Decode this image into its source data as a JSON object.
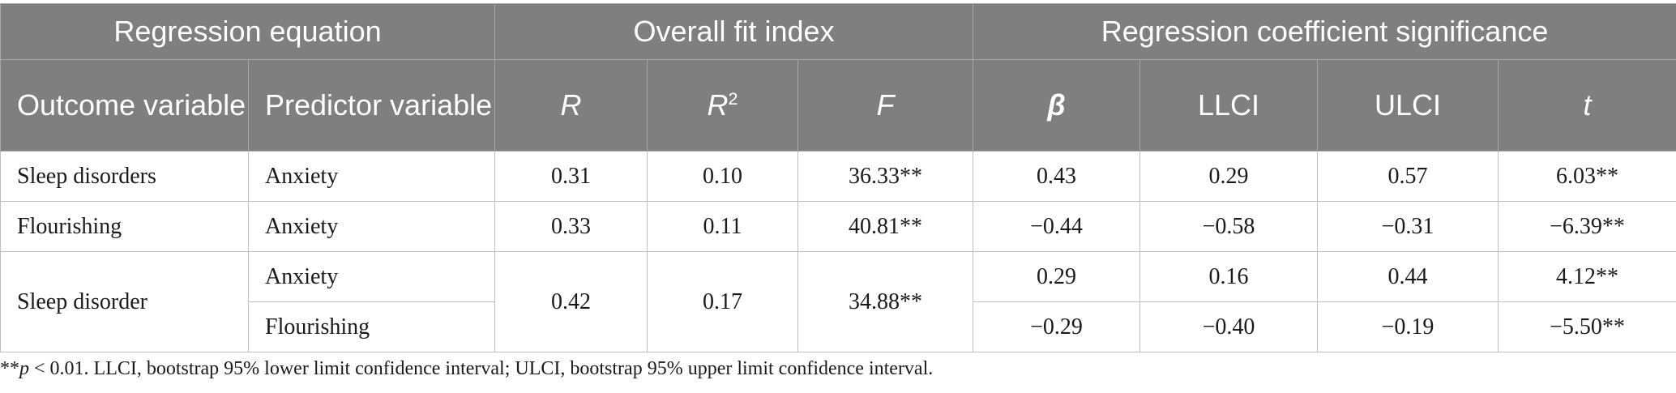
{
  "header": {
    "groups": {
      "regression_equation": "Regression equation",
      "overall_fit_index": "Overall fit index",
      "coefficient_significance": "Regression coefficient significance"
    },
    "columns": {
      "outcome_variable": "Outcome variable",
      "predictor_variable": "Predictor variable",
      "r": "R",
      "r2_base": "R",
      "r2_sup": "2",
      "f": "F",
      "beta": "β",
      "llci": "LLCI",
      "ulci": "ULCI",
      "t": "t"
    }
  },
  "rows": [
    {
      "outcome": "Sleep disorders",
      "predictor": "Anxiety",
      "r": "0.31",
      "r2": "0.10",
      "f": "36.33**",
      "beta": "0.43",
      "llci": "0.29",
      "ulci": "0.57",
      "t": "6.03**"
    },
    {
      "outcome": "Flourishing",
      "predictor": "Anxiety",
      "r": "0.33",
      "r2": "0.11",
      "f": "40.81**",
      "beta": "−0.44",
      "llci": "−0.58",
      "ulci": "−0.31",
      "t": "−6.39**"
    },
    {
      "outcome": "Sleep disorder",
      "predictor": "Anxiety",
      "r": "0.42",
      "r2": "0.17",
      "f": "34.88**",
      "beta": "0.29",
      "llci": "0.16",
      "ulci": "0.44",
      "t": "4.12**"
    },
    {
      "predictor": "Flourishing",
      "beta": "−0.29",
      "llci": "−0.40",
      "ulci": "−0.19",
      "t": "−5.50**"
    }
  ],
  "footnote": {
    "prefix": "**",
    "p_symbol": "p",
    "text": " < 0.01. LLCI, bootstrap 95% lower limit confidence interval; ULCI, bootstrap 95% upper limit confidence interval."
  }
}
